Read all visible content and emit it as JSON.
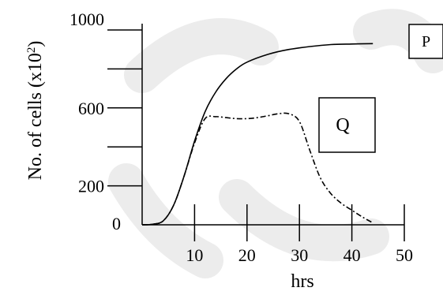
{
  "chart_data": {
    "type": "line",
    "title": "",
    "xlabel": "hrs",
    "ylabel": "No. of cells (x10",
    "ylabel_sup": "2",
    "ylabel_tail": ")",
    "xlim": [
      0,
      50
    ],
    "ylim": [
      0,
      1000
    ],
    "xticks": [
      10,
      20,
      30,
      40,
      50
    ],
    "y_minor_ticks": [
      200,
      400,
      600,
      800,
      1000
    ],
    "y_labels": [
      {
        "value": 0,
        "label": "0"
      },
      {
        "value": 200,
        "label": "200"
      },
      {
        "value": 600,
        "label": "600"
      },
      {
        "value": 1000,
        "label": "1000"
      }
    ],
    "series": [
      {
        "name": "P",
        "style": "solid",
        "x": [
          0,
          2,
          4,
          6,
          8,
          10,
          12,
          14,
          16,
          18,
          20,
          24,
          28,
          32,
          36,
          40,
          44
        ],
        "y": [
          0,
          3,
          20,
          100,
          250,
          430,
          580,
          680,
          750,
          800,
          835,
          875,
          900,
          915,
          925,
          928,
          930
        ]
      },
      {
        "name": "Q",
        "style": "dashdot",
        "x": [
          0,
          2,
          4,
          6,
          8,
          10,
          12,
          14,
          16,
          18,
          20,
          22,
          24,
          26,
          28,
          30,
          32,
          34,
          36,
          38,
          40,
          42,
          44
        ],
        "y": [
          0,
          3,
          20,
          100,
          250,
          420,
          545,
          555,
          550,
          545,
          545,
          550,
          560,
          570,
          570,
          530,
          380,
          240,
          160,
          110,
          75,
          40,
          10
        ]
      }
    ],
    "grid": false,
    "legend": "boxed labels at right"
  }
}
